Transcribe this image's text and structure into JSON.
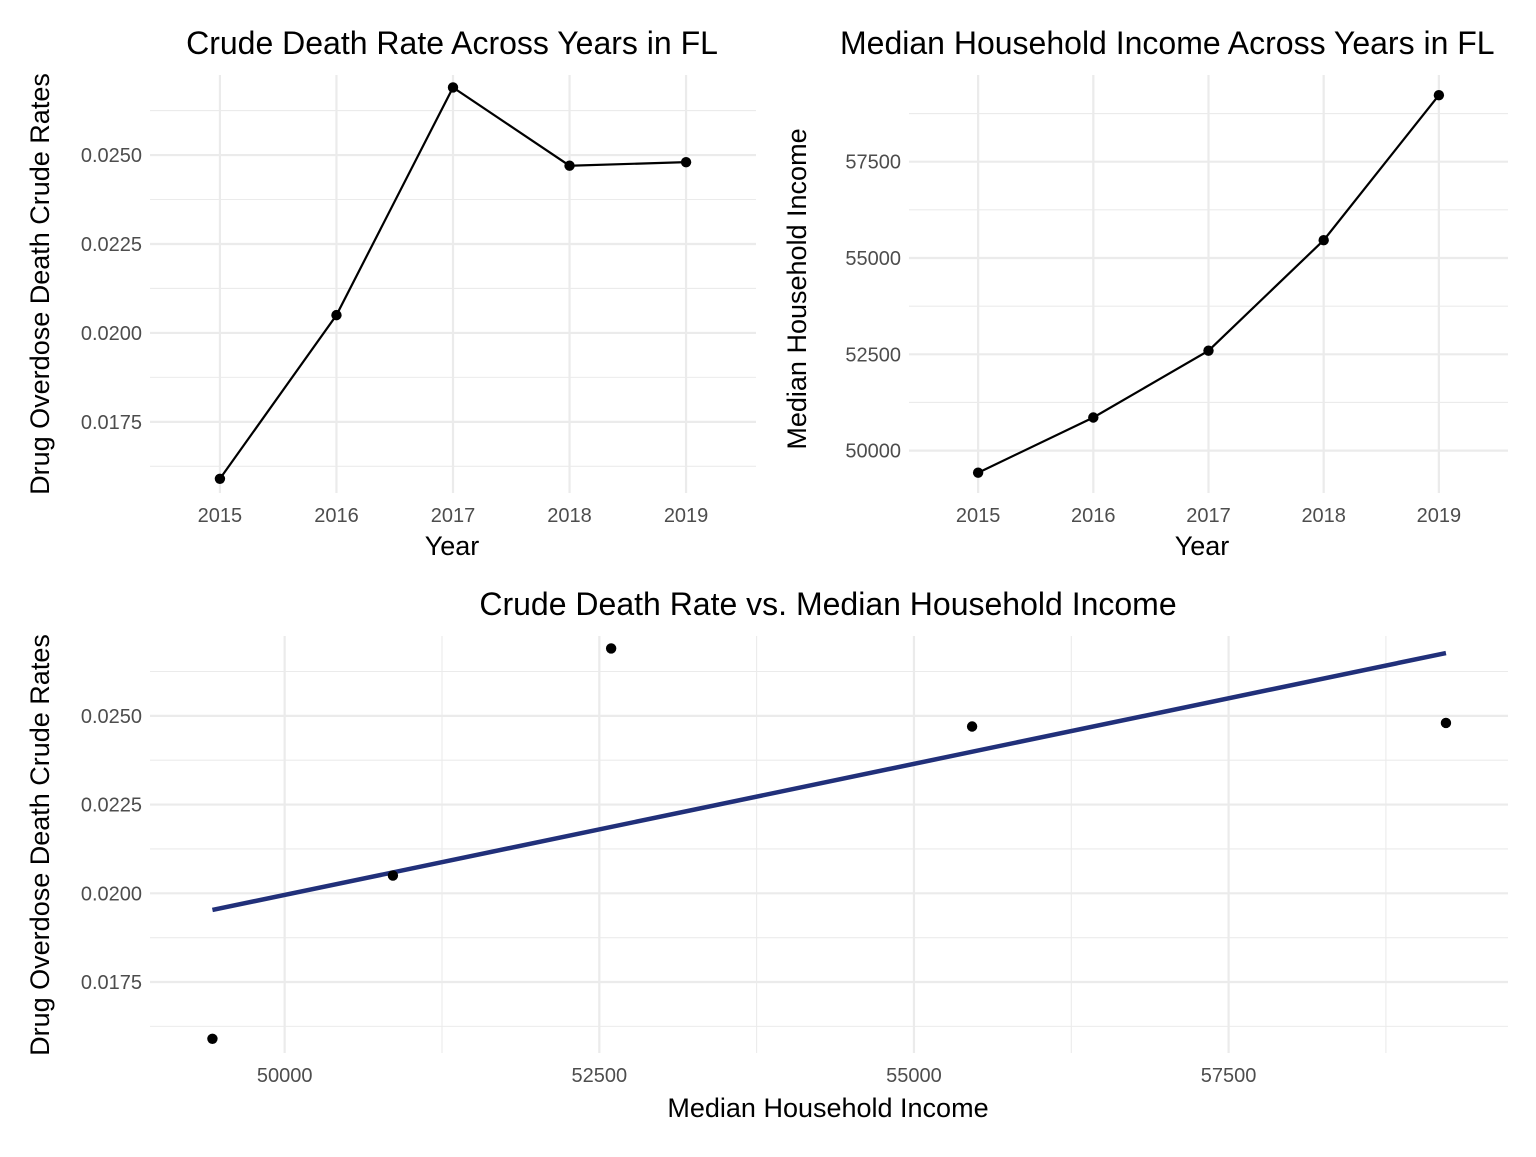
{
  "chart_data": [
    {
      "type": "line",
      "title": "Crude Death Rate Across Years in FL",
      "xlabel": "Year",
      "ylabel": "Drug Overdose Death Crude Rates",
      "x": [
        2015,
        2016,
        2017,
        2018,
        2019
      ],
      "y": [
        0.0159,
        0.0205,
        0.0269,
        0.0247,
        0.0248
      ],
      "x_ticks": [
        "2015",
        "2016",
        "2017",
        "2018",
        "2019"
      ],
      "y_ticks": [
        "0.0175",
        "0.0200",
        "0.0225",
        "0.0250"
      ],
      "xlim": [
        2014.4,
        2019.6
      ],
      "ylim": [
        0.0155,
        0.02725
      ],
      "grid": true,
      "legend": "none",
      "line_color": "#000000"
    },
    {
      "type": "line",
      "title": "Median Household Income Across Years in FL",
      "xlabel": "Year",
      "ylabel": "Median Household Income",
      "x": [
        2015,
        2016,
        2017,
        2018,
        2019
      ],
      "y": [
        49426,
        50860,
        52594,
        55462,
        59227
      ],
      "x_ticks": [
        "2015",
        "2016",
        "2017",
        "2018",
        "2019"
      ],
      "y_ticks": [
        "50000",
        "52500",
        "55000",
        "57500"
      ],
      "xlim": [
        2014.4,
        2019.6
      ],
      "ylim": [
        48900,
        59750
      ],
      "grid": true,
      "legend": "none",
      "line_color": "#000000"
    },
    {
      "type": "scatter",
      "title": "Crude Death Rate vs. Median Household Income",
      "xlabel": "Median Household Income",
      "ylabel": "Drug Overdose Death Crude Rates",
      "x": [
        49426,
        50860,
        52594,
        55462,
        59227
      ],
      "y": [
        0.0159,
        0.0205,
        0.0269,
        0.0247,
        0.0248
      ],
      "trendline": {
        "x": [
          49426,
          59227
        ],
        "y": [
          0.01953,
          0.02677
        ],
        "color": "#21307a"
      },
      "x_ticks": [
        "50000",
        "52500",
        "55000",
        "57500"
      ],
      "y_ticks": [
        "0.0175",
        "0.0200",
        "0.0225",
        "0.0250"
      ],
      "xlim": [
        48930,
        59720
      ],
      "ylim": [
        0.0155,
        0.02725
      ],
      "grid": true,
      "legend": "none"
    }
  ]
}
